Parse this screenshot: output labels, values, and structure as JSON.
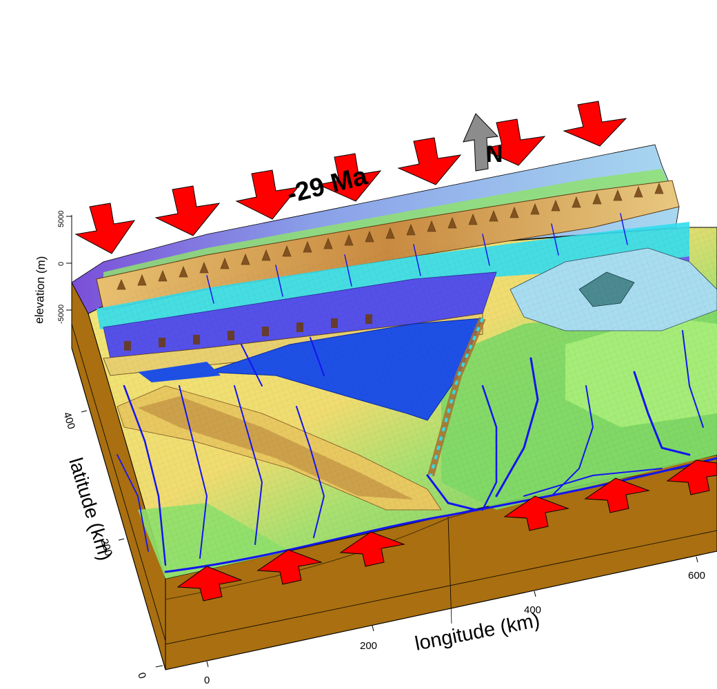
{
  "title": "-29 Ma",
  "north_label": "N",
  "axes": {
    "x": {
      "label": "longitude (km)",
      "ticks": [
        "0",
        "200",
        "400",
        "600"
      ]
    },
    "y": {
      "label": "latitude (km)",
      "ticks": [
        "0",
        "200",
        "400"
      ]
    },
    "z": {
      "label": "elevation (m)",
      "ticks": [
        "5000",
        "0",
        "-5000"
      ]
    }
  },
  "arrows": {
    "convergence_top_count": 8,
    "convergence_bottom_count": 6,
    "arrow_color": "#ff0000",
    "north_arrow_color": "#8c8c8c"
  },
  "colors": {
    "side_wall": "#a96f10",
    "lake": "#1e50e6",
    "ocean_purple": "#5050e0",
    "river": "#1414f0",
    "cyan_markers": "#33ddee",
    "lowland_green": "#88e06a",
    "upland_yellow": "#f0e070",
    "ridge_brown": "#7a4a1a"
  }
}
